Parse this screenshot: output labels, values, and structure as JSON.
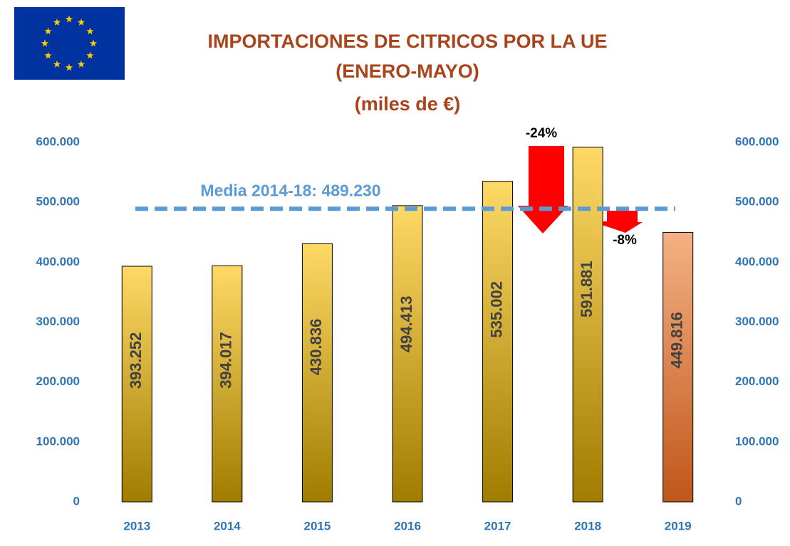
{
  "chart_data": {
    "type": "bar",
    "title": [
      "IMPORTACIONES DE CITRICOS POR LA UE",
      "(ENERO-MAYO)",
      "(miles de €)"
    ],
    "categories": [
      "2013",
      "2014",
      "2015",
      "2016",
      "2017",
      "2018",
      "2019"
    ],
    "values": [
      393252,
      394017,
      430836,
      494413,
      535002,
      591881,
      449816
    ],
    "value_labels": [
      "393.252",
      "394.017",
      "430.836",
      "494.413",
      "535.002",
      "591.881",
      "449.816"
    ],
    "colors": [
      [
        "#ffd966",
        "#a07c00"
      ],
      [
        "#ffd966",
        "#a07c00"
      ],
      [
        "#ffd966",
        "#a07c00"
      ],
      [
        "#ffd966",
        "#a07c00"
      ],
      [
        "#ffd966",
        "#a07c00"
      ],
      [
        "#ffd966",
        "#a07c00"
      ],
      [
        "#f4b183",
        "#c0561a"
      ]
    ],
    "ylim": [
      0,
      600000
    ],
    "yticks": [
      0,
      {
        "value": 100000,
        "label": "100.000"
      },
      {
        "value": 200000,
        "label": "200.000"
      },
      {
        "value": 300000,
        "label": "300.000"
      },
      {
        "value": 400000,
        "label": "400.000"
      },
      {
        "value": 500000,
        "label": "500.000"
      },
      {
        "value": 600000,
        "label": "600.000"
      }
    ],
    "y2lim": [
      0,
      600000
    ],
    "y2ticks": [
      0,
      {
        "value": 100000,
        "label": "100.000"
      },
      {
        "value": 200000,
        "label": "200.000"
      },
      {
        "value": 300000,
        "label": "300.000"
      },
      {
        "value": 400000,
        "label": "400.000"
      },
      {
        "value": 500000,
        "label": "500.000"
      },
      {
        "value": 600000,
        "label": "600.000"
      }
    ],
    "grid": false,
    "mean_line": {
      "label": "Media 2014-18: 489.230",
      "value": 489230,
      "color": "#5b9bd5"
    },
    "annotations": [
      "-24%",
      "-8%"
    ]
  }
}
